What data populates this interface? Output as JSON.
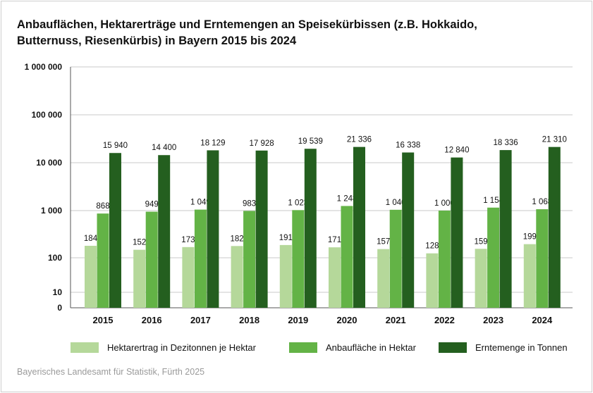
{
  "chart_data": {
    "type": "bar",
    "title_lines": [
      "Anbauflächen, Hektarerträge und Erntemengen an Speisekürbissen (z.B. Hokkaido,",
      "Butternuss, Riesenkürbis) in Bayern 2015 bis 2024"
    ],
    "categories": [
      "2015",
      "2016",
      "2017",
      "2018",
      "2019",
      "2020",
      "2021",
      "2022",
      "2023",
      "2024"
    ],
    "y_scale": "log",
    "ylim": [
      0,
      1000000
    ],
    "y_ticks": [
      1000000,
      100000,
      10000,
      1000,
      100,
      10,
      0
    ],
    "y_tick_labels": [
      "1 000 000",
      "100 000",
      "10 000",
      "1 000",
      "100",
      "10",
      "0"
    ],
    "grid": true,
    "legend_placement": "bottom",
    "series": [
      {
        "name": "Hektarertrag in Dezitonnen je Hektar",
        "color": "#b5d89a",
        "values": [
          184,
          152,
          173,
          182,
          191,
          171,
          157,
          128,
          159,
          199
        ],
        "labels": [
          "184",
          "152",
          "173",
          "182",
          "191",
          "171",
          "157",
          "128",
          "159",
          "199"
        ]
      },
      {
        "name": "Anbaufläche in Hektar",
        "color": "#63b346",
        "values": [
          868,
          949,
          1049,
          983,
          1023,
          1248,
          1040,
          1000,
          1154,
          1068
        ],
        "labels": [
          "868",
          "949",
          "1 049",
          "983",
          "1 023",
          "1 248",
          "1 040",
          "1 000",
          "1 154",
          "1 068"
        ]
      },
      {
        "name": "Erntemenge in Tonnen",
        "color": "#245f1f",
        "values": [
          15940,
          14400,
          18129,
          17928,
          19539,
          21336,
          16338,
          12840,
          18336,
          21310
        ],
        "labels": [
          "15 940",
          "14 400",
          "18 129",
          "17 928",
          "19 539",
          "21 336",
          "16 338",
          "12 840",
          "18 336",
          "21 310"
        ]
      }
    ]
  },
  "source": "Bayerisches Landesamt für Statistik, Fürth 2025"
}
